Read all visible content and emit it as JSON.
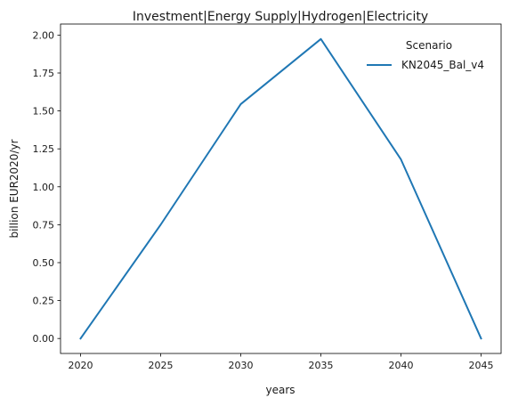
{
  "chart_data": {
    "type": "line",
    "title": "Investment|Energy Supply|Hydrogen|Electricity",
    "xlabel": "years",
    "ylabel": "billion EUR2020/yr",
    "x": [
      2020,
      2025,
      2030,
      2035,
      2040,
      2045
    ],
    "xticks": [
      "2020",
      "2025",
      "2030",
      "2035",
      "2040",
      "2045"
    ],
    "yticks": [
      "0.00",
      "0.25",
      "0.50",
      "0.75",
      "1.00",
      "1.25",
      "1.50",
      "1.75",
      "2.00"
    ],
    "xlim": [
      2018.75,
      2046.25
    ],
    "ylim": [
      -0.0987,
      2.0727
    ],
    "grid": false,
    "legend": {
      "title": "Scenario",
      "placement": "top-right"
    },
    "series": [
      {
        "name": "KN2045_Bal_v4",
        "color": "#1f77b4",
        "values": [
          0.0,
          0.75,
          1.545,
          1.974,
          1.18,
          0.0
        ]
      }
    ]
  }
}
